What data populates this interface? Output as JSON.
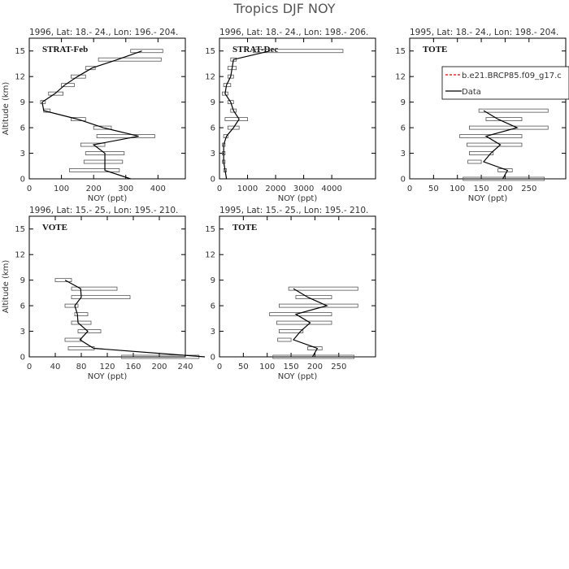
{
  "title": "Tropics DJF NOY",
  "chart_data": [
    {
      "type": "line",
      "title": "1996, Lat: 18.- 24., Lon: 196.- 204.",
      "label": "STRAT-Feb",
      "xlabel": "NOY (ppt)",
      "ylabel": "Altitude (km)",
      "xlim": [
        0,
        485
      ],
      "xticks": [
        0,
        100,
        200,
        300,
        400
      ],
      "ylim": [
        0,
        16.5
      ],
      "yticks": [
        0,
        3,
        6,
        9,
        12,
        15
      ],
      "color": "#000000",
      "altitude": [
        0,
        1,
        2,
        3,
        4,
        5,
        6,
        7,
        8,
        9,
        10,
        11,
        12,
        13,
        14,
        15
      ],
      "values": [
        315,
        235,
        235,
        235,
        200,
        340,
        230,
        150,
        45,
        40,
        80,
        110,
        150,
        195,
        275,
        350
      ],
      "low": [
        null,
        125,
        170,
        175,
        160,
        210,
        200,
        130,
        45,
        35,
        60,
        100,
        130,
        175,
        215,
        315
      ],
      "high": [
        null,
        280,
        290,
        295,
        235,
        390,
        255,
        175,
        65,
        50,
        105,
        140,
        175,
        205,
        410,
        415
      ]
    },
    {
      "type": "line",
      "title": "1996, Lat: 18.- 24., Lon: 198.- 206.",
      "label": "STRAT-Dec",
      "xlabel": "NOY (ppt)",
      "xlim": [
        0,
        5560
      ],
      "xticks": [
        0,
        1000,
        2000,
        3000,
        4000
      ],
      "ylim": [
        0,
        16.5
      ],
      "yticks": [
        0,
        3,
        6,
        9,
        12,
        15
      ],
      "color": "#000000",
      "altitude": [
        0,
        1,
        2,
        3,
        4,
        5,
        6,
        7,
        8,
        9,
        10,
        11,
        12,
        13,
        14,
        15
      ],
      "values": [
        250,
        200,
        150,
        150,
        150,
        250,
        500,
        700,
        500,
        400,
        200,
        250,
        400,
        450,
        500,
        1800
      ],
      "low": [
        null,
        150,
        100,
        100,
        100,
        150,
        300,
        200,
        400,
        300,
        100,
        150,
        300,
        300,
        400,
        1200
      ],
      "high": [
        null,
        250,
        200,
        200,
        200,
        300,
        700,
        1000,
        600,
        500,
        300,
        400,
        500,
        600,
        600,
        4400
      ]
    },
    {
      "type": "line",
      "title": "1995, Lat: 18.- 24., Lon: 198.- 204.",
      "label": "TOTE",
      "xlabel": "NOY (ppt)",
      "xlim": [
        0,
        327
      ],
      "xticks": [
        0,
        50,
        100,
        150,
        200,
        250
      ],
      "ylim": [
        0,
        16.5
      ],
      "yticks": [
        0,
        3,
        6,
        9,
        12,
        15
      ],
      "color": "#000000",
      "altitude": [
        0,
        1,
        2,
        3,
        4,
        5,
        6,
        7,
        8
      ],
      "values": [
        195,
        205,
        155,
        170,
        190,
        160,
        225,
        185,
        155
      ],
      "low": [
        112,
        185,
        122,
        125,
        120,
        105,
        125,
        160,
        145
      ],
      "high": [
        282,
        215,
        150,
        175,
        235,
        235,
        290,
        235,
        290
      ],
      "legend": [
        {
          "name": "b.e21.BRCP85.f09_g17.c",
          "color": "#e00000",
          "dashed": true
        },
        {
          "name": "Data",
          "color": "#000000",
          "dashed": false
        }
      ]
    },
    {
      "type": "line",
      "title": "1996, Lat: 15.- 25., Lon: 195.- 210.",
      "label": "VOTE",
      "xlabel": "NOY (ppt)",
      "ylabel": "Altitude (km)",
      "xlim": [
        0,
        240
      ],
      "xticks": [
        0,
        40,
        80,
        120,
        160,
        200,
        240
      ],
      "ylim": [
        0,
        16.5
      ],
      "yticks": [
        0,
        3,
        6,
        9,
        12,
        15
      ],
      "color": "#000000",
      "altitude": [
        0,
        1,
        2,
        3,
        4,
        5,
        6,
        7,
        8,
        9
      ],
      "values": [
        270,
        99,
        78,
        90,
        75,
        74,
        70,
        80,
        79,
        55
      ],
      "low": [
        142,
        60,
        55,
        75,
        65,
        70,
        55,
        65,
        65,
        40
      ],
      "high": [
        261,
        100,
        80,
        110,
        95,
        90,
        75,
        155,
        135,
        65
      ]
    },
    {
      "type": "line",
      "title": "1995, Lat: 15.- 25., Lon: 195.- 210.",
      "label": "TOTE",
      "xlabel": "NOY (ppt)",
      "xlim": [
        0,
        327
      ],
      "xticks": [
        0,
        50,
        100,
        150,
        200,
        250
      ],
      "ylim": [
        0,
        16.5
      ],
      "yticks": [
        0,
        3,
        6,
        9,
        12,
        15
      ],
      "color": "#000000",
      "altitude": [
        0,
        1,
        2,
        3,
        4,
        5,
        6,
        7,
        8
      ],
      "values": [
        195,
        205,
        155,
        170,
        190,
        160,
        225,
        185,
        155
      ],
      "low": [
        112,
        185,
        122,
        125,
        120,
        105,
        125,
        160,
        145
      ],
      "high": [
        282,
        215,
        150,
        175,
        235,
        235,
        290,
        235,
        290
      ]
    }
  ]
}
